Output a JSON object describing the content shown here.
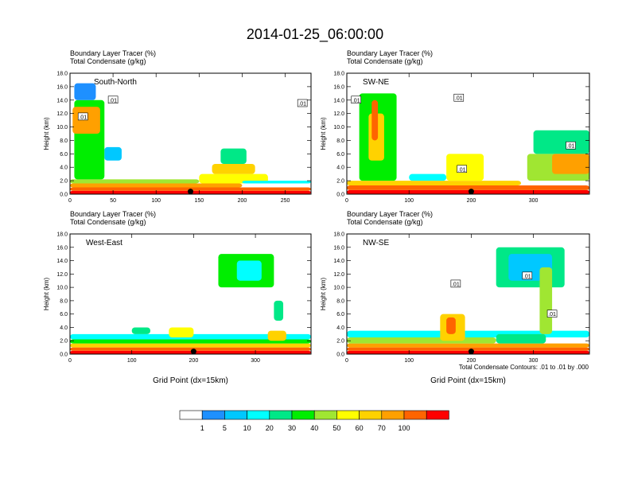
{
  "chart_data": {
    "type": "heatmap",
    "title": "2014-01-25_06:00:00",
    "panel_labels": [
      "Boundary Layer Tracer   (%)",
      "Total Condensate   (g/kg)"
    ],
    "ylabel": "Height (km)",
    "xlabel": "Grid Point (dx=15km)",
    "ylim": [
      0,
      18
    ],
    "y_ticks": [
      "0.0",
      "2.0",
      "4.0",
      "6.0",
      "8.0",
      "10.0",
      "12.0",
      "14.0",
      "16.0",
      "18.0"
    ],
    "y_tick_values": [
      0,
      2,
      4,
      6,
      8,
      10,
      12,
      14,
      16,
      18
    ],
    "contour_note": "Total Condensate Contours: .01 to .01 by .000",
    "contour_label": ".01",
    "colorbar": {
      "labels": [
        "1",
        "5",
        "10",
        "20",
        "30",
        "40",
        "50",
        "60",
        "70",
        "100"
      ],
      "colors": [
        "#ffffff",
        "#1e90ff",
        "#00c8ff",
        "#00ffff",
        "#00e887",
        "#00ee00",
        "#a0e632",
        "#ffff00",
        "#ffd200",
        "#ffa000",
        "#ff6400",
        "#ff0000"
      ]
    },
    "panels": [
      {
        "name": "South-North",
        "xlim": [
          0,
          280
        ],
        "x_ticks": [
          "0",
          "50",
          "100",
          "150",
          "200",
          "250"
        ],
        "x_tick_values": [
          0,
          50,
          100,
          150,
          200,
          250
        ],
        "show_xlabel": false,
        "marker_x": 140,
        "cells": [
          [
            0,
            280,
            0,
            0.5,
            11
          ],
          [
            0,
            280,
            0.5,
            1.0,
            10
          ],
          [
            0,
            200,
            1.0,
            1.6,
            9
          ],
          [
            0,
            150,
            1.6,
            2.2,
            6
          ],
          [
            5,
            40,
            2.2,
            14.0,
            5
          ],
          [
            3,
            35,
            9.0,
            13.0,
            9
          ],
          [
            5,
            30,
            14.0,
            16.5,
            1
          ],
          [
            150,
            230,
            1.6,
            3.0,
            7
          ],
          [
            165,
            215,
            3.0,
            4.5,
            8
          ],
          [
            175,
            205,
            4.5,
            6.8,
            4
          ],
          [
            40,
            60,
            5.0,
            7.0,
            2
          ],
          [
            200,
            280,
            1.6,
            2.0,
            3
          ]
        ],
        "contour_label_x": [
          15,
          50,
          270
        ],
        "contour_label_y": [
          11.5,
          14.0,
          13.5
        ]
      },
      {
        "name": "SW-NE",
        "xlim": [
          0,
          390
        ],
        "x_ticks": [
          "0",
          "100",
          "200",
          "300"
        ],
        "x_tick_values": [
          0,
          100,
          200,
          300
        ],
        "show_xlabel": false,
        "marker_x": 200,
        "cells": [
          [
            0,
            390,
            0,
            0.6,
            11
          ],
          [
            0,
            390,
            0.6,
            1.3,
            10
          ],
          [
            0,
            280,
            1.3,
            2.0,
            8
          ],
          [
            20,
            80,
            2.0,
            15.0,
            5
          ],
          [
            35,
            60,
            5.0,
            12.0,
            8
          ],
          [
            40,
            50,
            8.0,
            14.0,
            10
          ],
          [
            160,
            220,
            2.0,
            6.0,
            7
          ],
          [
            290,
            390,
            2.0,
            6.0,
            6
          ],
          [
            300,
            390,
            6.0,
            9.5,
            4
          ],
          [
            330,
            390,
            3.0,
            6.0,
            9
          ],
          [
            100,
            160,
            2.0,
            3.0,
            3
          ]
        ],
        "contour_label_x": [
          15,
          180,
          360,
          185
        ],
        "contour_label_y": [
          14.0,
          14.3,
          7.2,
          3.7
        ]
      },
      {
        "name": "West-East",
        "xlim": [
          0,
          390
        ],
        "x_ticks": [
          "0",
          "100",
          "200",
          "300"
        ],
        "x_tick_values": [
          0,
          100,
          200,
          300
        ],
        "show_xlabel": true,
        "marker_x": 200,
        "cells": [
          [
            0,
            390,
            0,
            0.5,
            11
          ],
          [
            0,
            390,
            0.5,
            1.0,
            10
          ],
          [
            0,
            390,
            1.0,
            1.6,
            8
          ],
          [
            0,
            390,
            1.6,
            2.2,
            5
          ],
          [
            0,
            390,
            2.2,
            3.0,
            3
          ],
          [
            100,
            130,
            3.0,
            4.0,
            4
          ],
          [
            160,
            200,
            2.5,
            4.0,
            7
          ],
          [
            240,
            330,
            10.0,
            15.0,
            5
          ],
          [
            270,
            310,
            11.0,
            14.0,
            3
          ],
          [
            330,
            345,
            5.0,
            8.0,
            4
          ],
          [
            320,
            350,
            2.0,
            3.5,
            8
          ]
        ],
        "contour_label_x": [],
        "contour_label_y": []
      },
      {
        "name": "NW-SE",
        "xlim": [
          0,
          390
        ],
        "x_ticks": [
          "0",
          "100",
          "200",
          "300"
        ],
        "x_tick_values": [
          0,
          100,
          200,
          300
        ],
        "show_xlabel": true,
        "marker_x": 200,
        "cells": [
          [
            0,
            390,
            0,
            0.5,
            11
          ],
          [
            0,
            390,
            0.5,
            1.0,
            10
          ],
          [
            0,
            390,
            1.0,
            1.6,
            9
          ],
          [
            0,
            240,
            1.6,
            2.5,
            6
          ],
          [
            0,
            390,
            2.5,
            3.5,
            3
          ],
          [
            150,
            190,
            2.0,
            6.0,
            8
          ],
          [
            160,
            175,
            3.0,
            5.5,
            10
          ],
          [
            240,
            350,
            10.0,
            16.0,
            4
          ],
          [
            260,
            330,
            11.0,
            15.0,
            2
          ],
          [
            310,
            330,
            3.0,
            13.0,
            6
          ],
          [
            240,
            320,
            1.6,
            3.0,
            4
          ]
        ],
        "contour_label_x": [
          175,
          290,
          330
        ],
        "contour_label_y": [
          10.5,
          11.7,
          6.0
        ]
      }
    ]
  }
}
